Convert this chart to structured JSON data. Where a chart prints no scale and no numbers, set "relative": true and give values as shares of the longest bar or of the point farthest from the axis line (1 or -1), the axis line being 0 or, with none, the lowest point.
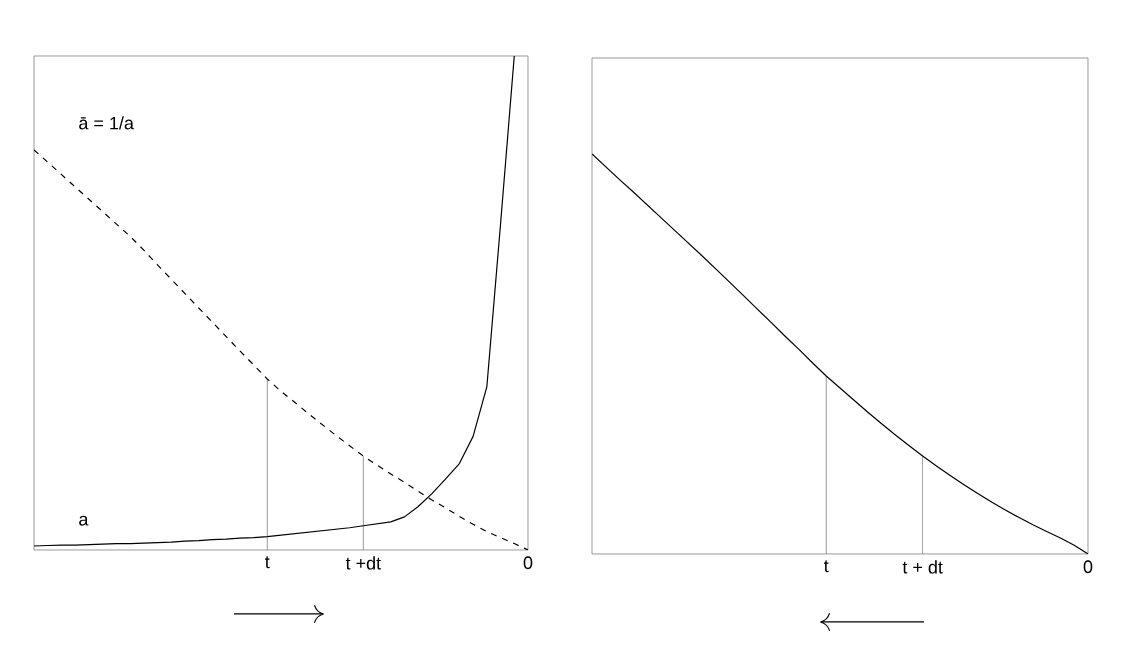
{
  "chart_data": [
    {
      "type": "line",
      "relative": true,
      "categories": [
        null,
        null,
        null,
        null,
        null,
        null,
        null,
        null,
        null,
        null,
        null,
        null,
        null,
        null,
        null,
        null,
        null,
        "t",
        null,
        null,
        null,
        null,
        null,
        null,
        "t +dt",
        null,
        null,
        null,
        null,
        null,
        null,
        null,
        null,
        null,
        null,
        null,
        "0"
      ],
      "series": [
        {
          "name": "a",
          "color": "#000000",
          "line_style": "solid",
          "values": [
            0.008,
            0.009,
            0.01,
            0.01,
            0.011,
            0.012,
            0.013,
            0.013,
            0.014,
            0.015,
            0.016,
            0.018,
            0.019,
            0.021,
            0.022,
            0.024,
            0.025,
            0.027,
            0.03,
            0.033,
            0.036,
            0.039,
            0.042,
            0.045,
            0.049,
            0.053,
            0.057,
            0.067,
            0.088,
            0.114,
            0.144,
            0.175,
            0.23,
            0.33,
            0.66,
            1.0,
            null
          ]
        },
        {
          "name": "ā = 1/a",
          "color": "#000000",
          "line_style": "dashed",
          "values": [
            0.81,
            0.785,
            0.76,
            0.735,
            0.71,
            0.685,
            0.66,
            0.635,
            0.607,
            0.577,
            0.548,
            0.519,
            0.49,
            0.461,
            0.432,
            0.403,
            0.375,
            0.346,
            0.321,
            0.299,
            0.276,
            0.254,
            0.232,
            0.211,
            0.19,
            0.172,
            0.154,
            0.137,
            0.119,
            0.101,
            0.085,
            0.068,
            0.052,
            0.037,
            0.025,
            0.013,
            0
          ]
        }
      ],
      "ref_lines": [
        {
          "axis": "x",
          "value": "t",
          "color": "#808080"
        },
        {
          "axis": "x",
          "value": "t +dt",
          "color": "#808080"
        }
      ]
    },
    {
      "type": "line",
      "relative": true,
      "categories": [
        null,
        null,
        null,
        null,
        null,
        null,
        null,
        null,
        null,
        null,
        null,
        null,
        null,
        null,
        null,
        null,
        null,
        "t",
        null,
        null,
        null,
        null,
        null,
        null,
        "t + dt",
        null,
        null,
        null,
        null,
        null,
        null,
        null,
        null,
        null,
        null,
        null,
        "0"
      ],
      "series": [
        {
          "color": "#000000",
          "line_style": "solid",
          "values": [
            1.0,
            0.968,
            0.936,
            0.905,
            0.873,
            0.841,
            0.809,
            0.777,
            0.745,
            0.712,
            0.679,
            0.646,
            0.612,
            0.579,
            0.545,
            0.512,
            0.478,
            0.445,
            0.415,
            0.385,
            0.355,
            0.326,
            0.298,
            0.271,
            0.245,
            0.22,
            0.196,
            0.173,
            0.151,
            0.13,
            0.11,
            0.091,
            0.073,
            0.056,
            0.04,
            0.022,
            0
          ]
        }
      ],
      "ref_lines": [
        {
          "axis": "x",
          "value": "t",
          "color": "#808080"
        },
        {
          "axis": "x",
          "value": "t + dt",
          "color": "#808080"
        }
      ]
    }
  ]
}
